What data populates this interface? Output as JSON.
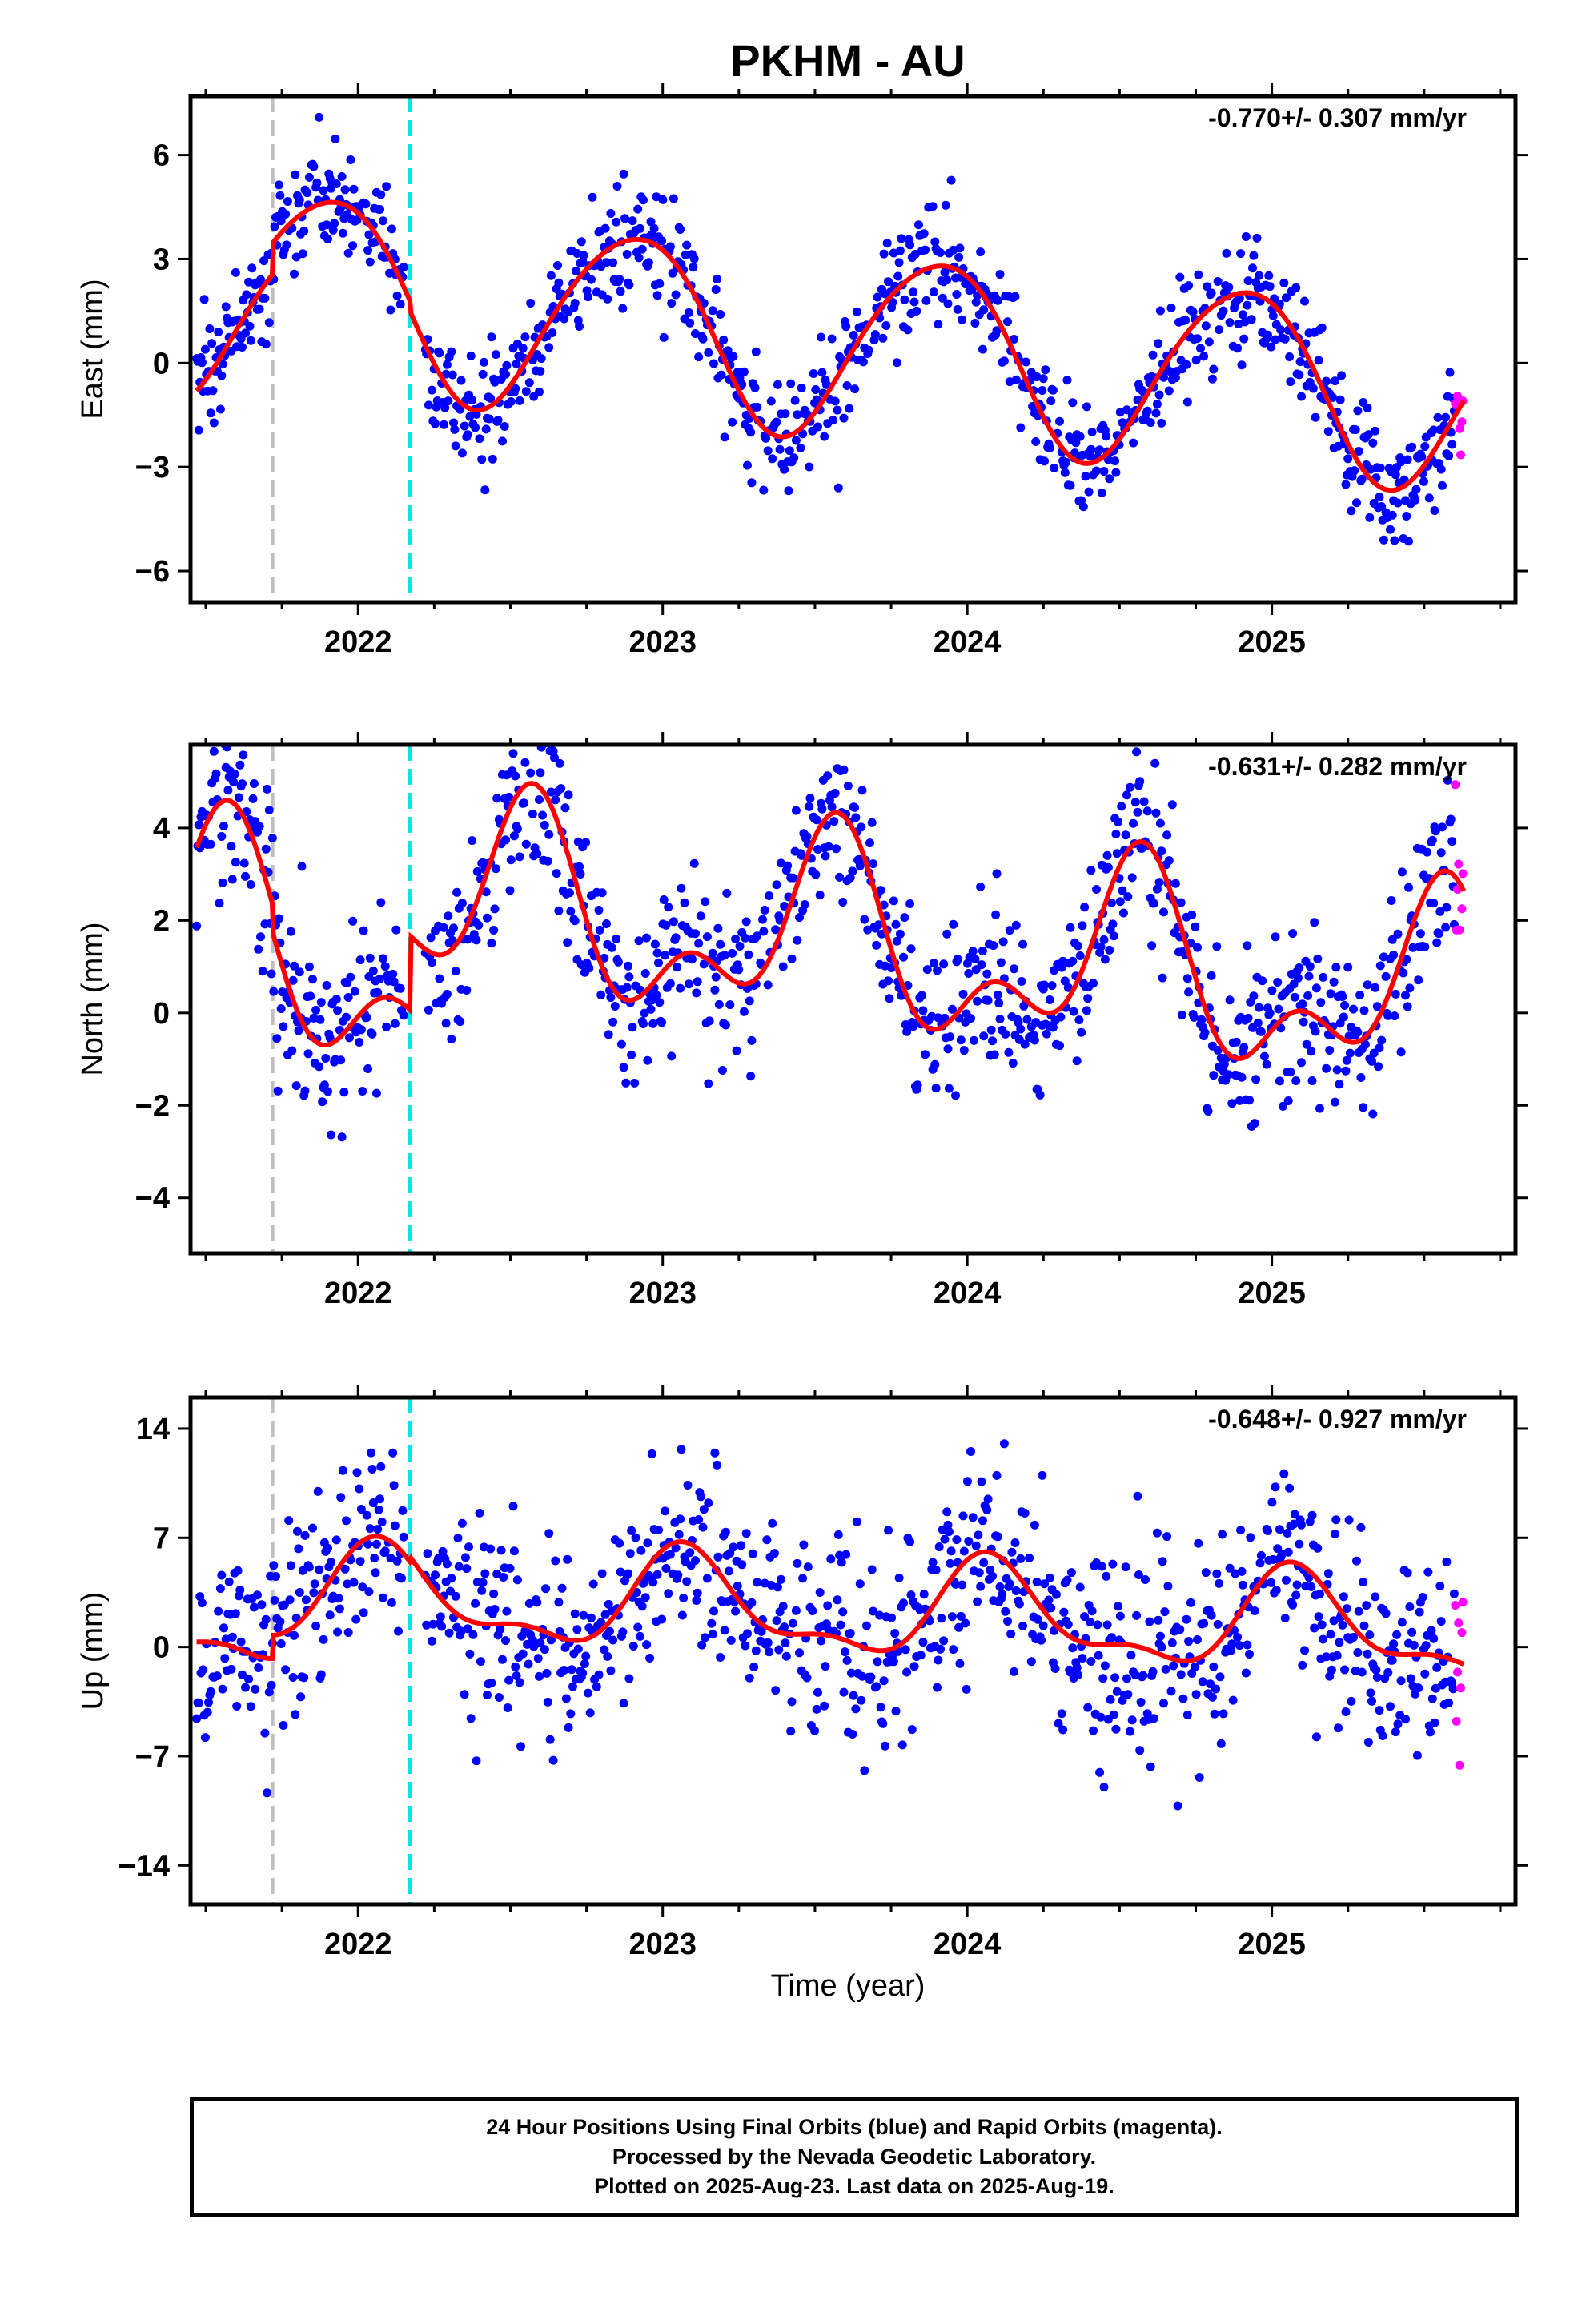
{
  "title": "PKHM - AU",
  "xlabel": "Time (year)",
  "colors": {
    "final_orbit_points": "#0000ff",
    "rapid_orbit_points": "#ff00ff",
    "model_fit": "#ff0000",
    "equipment_change_line": "#c0c0c0",
    "other_event_line": "#00e5e5"
  },
  "footer": {
    "line1": "24 Hour Positions Using Final Orbits (blue) and Rapid Orbits (magenta).",
    "line2": "Processed by the Nevada Geodetic Laboratory.",
    "line3": "Plotted on 2025-Aug-23. Last data on 2025-Aug-19."
  },
  "chart_data": [
    {
      "type": "scatter",
      "component": "east",
      "ylabel": "East (mm)",
      "rate_annotation": "-0.770+/- 0.307 mm/yr",
      "xlim": [
        2021.45,
        2025.8
      ],
      "ylim": [
        -6.9,
        7.7
      ],
      "yticks": [
        6,
        3,
        0,
        -3,
        -6
      ],
      "xticks": [
        2022,
        2023,
        2024,
        2025
      ],
      "event_lines": [
        2021.72,
        2022.17
      ],
      "fit": {
        "offset": 0.05,
        "trend": -0.77,
        "amp": 2.65,
        "peak_phase": 0.9,
        "amp2": 0.25,
        "phase2": 0.1,
        "steps": [
          [
            2021.72,
            0.9
          ],
          [
            2022.17,
            -0.3
          ]
        ]
      },
      "noise_sd": 0.85,
      "series": [
        {
          "name": "Final Orbits (blue)"
        },
        {
          "name": "Rapid Orbits (magenta)"
        }
      ]
    },
    {
      "type": "scatter",
      "component": "north",
      "ylabel": "North (mm)",
      "rate_annotation": "-0.631+/- 0.282 mm/yr",
      "xlim": [
        2021.45,
        2025.8
      ],
      "ylim": [
        -5.2,
        5.8
      ],
      "yticks": [
        4,
        2,
        0,
        -2,
        -4
      ],
      "xticks": [
        2022,
        2023,
        2024,
        2025
      ],
      "event_lines": [
        2021.72,
        2022.17
      ],
      "fit": {
        "offset": 0.6,
        "trend": -0.631,
        "amp": 1.7,
        "peak_phase": 0.55,
        "amp2": 1.1,
        "phase2": 0.08,
        "steps": [
          [
            2021.72,
            -0.6
          ],
          [
            2022.17,
            1.6
          ]
        ]
      },
      "noise_sd": 0.9,
      "series": [
        {
          "name": "Final Orbits (blue)"
        },
        {
          "name": "Rapid Orbits (magenta)"
        }
      ]
    },
    {
      "type": "scatter",
      "component": "up",
      "ylabel": "Up (mm)",
      "rate_annotation": "-0.648+/- 0.927 mm/yr",
      "xlim": [
        2021.45,
        2025.8
      ],
      "ylim": [
        -16.5,
        16.0
      ],
      "yticks": [
        14,
        7,
        0,
        -7,
        -14
      ],
      "xticks": [
        2022,
        2023,
        2024,
        2025
      ],
      "event_lines": [
        2021.72,
        2022.17
      ],
      "fit": {
        "offset": 0.6,
        "trend": -0.648,
        "amp": 2.9,
        "peak_phase": 0.08,
        "amp2": 1.2,
        "phase2": 0.55,
        "steps": [
          [
            2021.72,
            1.5
          ],
          [
            2022.17,
            0.3
          ]
        ]
      },
      "noise_sd": 3.2,
      "series": [
        {
          "name": "Final Orbits (blue)"
        },
        {
          "name": "Rapid Orbits (magenta)"
        }
      ]
    }
  ]
}
